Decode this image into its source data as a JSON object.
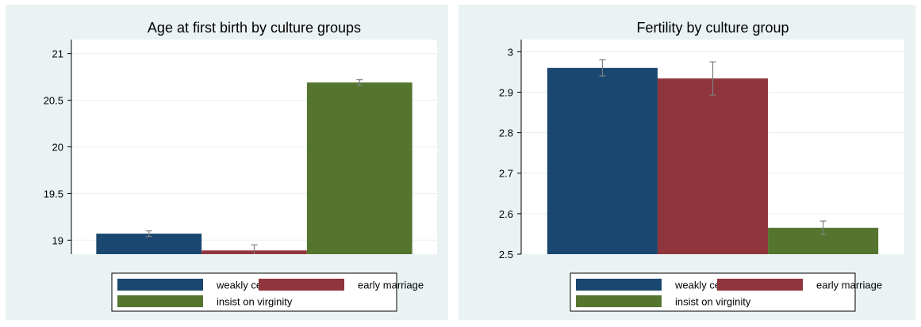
{
  "colors": {
    "panel_bg": "#eaf2f3",
    "plot_bg": "#ffffff",
    "grid": "#eaf2f3",
    "axis": "#000000",
    "errorbar": "#7f7f7f",
    "text": "#000000",
    "series": [
      "#1a476f",
      "#90353b",
      "#55752f"
    ]
  },
  "chart_data": [
    {
      "type": "bar",
      "title": "Age at first birth by culture groups",
      "xlabel": "",
      "ylabel": "",
      "ylim": [
        18.85,
        21.15
      ],
      "yticks": [
        19,
        19.5,
        20,
        20.5,
        21
      ],
      "ytick_labels": [
        "19",
        "19.5",
        "20",
        "20.5",
        "21"
      ],
      "grid": true,
      "legend_position": "bottom",
      "series": [
        {
          "name": "weakly censured",
          "value": 19.07,
          "ci": [
            19.04,
            19.1
          ]
        },
        {
          "name": "early marriage",
          "value": 18.89,
          "ci": [
            18.84,
            18.95
          ]
        },
        {
          "name": "insist on virginity",
          "value": 20.69,
          "ci": [
            20.66,
            20.72
          ]
        }
      ]
    },
    {
      "type": "bar",
      "title": "Fertility by culture group",
      "xlabel": "",
      "ylabel": "",
      "ylim": [
        2.5,
        3.03
      ],
      "yticks": [
        2.5,
        2.6,
        2.7,
        2.8,
        2.9,
        3
      ],
      "ytick_labels": [
        "2.5",
        "2.6",
        "2.7",
        "2.8",
        "2.9",
        "3"
      ],
      "grid": true,
      "legend_position": "bottom",
      "series": [
        {
          "name": "weakly censured",
          "value": 2.96,
          "ci": [
            2.94,
            2.98
          ]
        },
        {
          "name": "early marriage",
          "value": 2.934,
          "ci": [
            2.893,
            2.975
          ]
        },
        {
          "name": "insist on virginity",
          "value": 2.565,
          "ci": [
            2.548,
            2.582
          ]
        }
      ]
    }
  ]
}
